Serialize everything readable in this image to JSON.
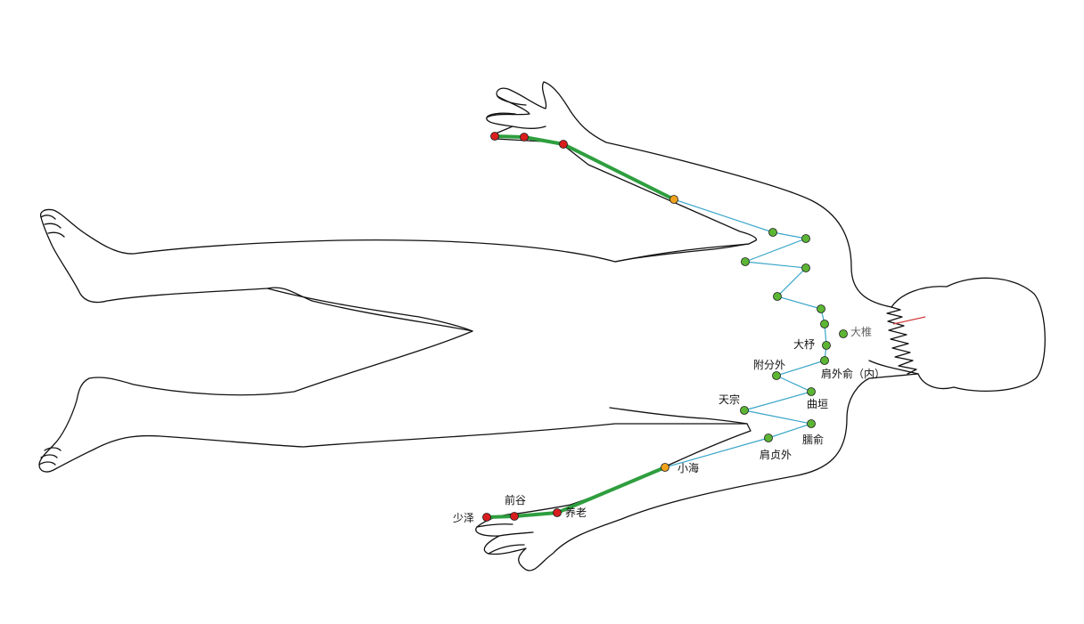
{
  "colors": {
    "background": "#ffffff",
    "outline": "#111111",
    "channel_surface": "#2e9e3e",
    "channel_internal": "#3aa6c8",
    "point_green": "#5cb634",
    "point_orange": "#f0a21c",
    "point_red": "#d81e1e",
    "label_dark": "#111111",
    "label_gray": "#666666",
    "marker_red": "#d33c3c"
  },
  "points": [
    {
      "id": "shaoze_r",
      "label": "少泽",
      "color": "red"
    },
    {
      "id": "qiangu_r",
      "label": "前谷",
      "color": "red"
    },
    {
      "id": "yanglao_r",
      "label": "养老",
      "color": "red"
    },
    {
      "id": "xiaohai_r",
      "label": "小海",
      "color": "orange"
    },
    {
      "id": "jianzhen_r",
      "label": "肩贞外",
      "color": "green"
    },
    {
      "id": "naoshu_r",
      "label": "臑俞",
      "color": "green"
    },
    {
      "id": "tianzong_r",
      "label": "天宗",
      "color": "green"
    },
    {
      "id": "quyuan_r",
      "label": "曲垣",
      "color": "green"
    },
    {
      "id": "fufen_r",
      "label": "附分外",
      "color": "green"
    },
    {
      "id": "jianwaishu_r",
      "label": "肩外俞（内）",
      "color": "green"
    },
    {
      "id": "dazhu",
      "label": "大杼",
      "color": "green"
    },
    {
      "id": "dazhui",
      "label": "大椎",
      "color": "green"
    },
    {
      "id": "p_l1",
      "label": "",
      "color": "green"
    },
    {
      "id": "p_l2",
      "label": "",
      "color": "green"
    },
    {
      "id": "p_l3",
      "label": "",
      "color": "green"
    },
    {
      "id": "p_l4",
      "label": "",
      "color": "green"
    },
    {
      "id": "p_l5",
      "label": "",
      "color": "green"
    },
    {
      "id": "p_l6",
      "label": "",
      "color": "green"
    },
    {
      "id": "p_l7",
      "label": "",
      "color": "green"
    },
    {
      "id": "p_l8",
      "label": "",
      "color": "orange"
    },
    {
      "id": "p_l9",
      "label": "",
      "color": "red"
    },
    {
      "id": "p_l10",
      "label": "",
      "color": "red"
    },
    {
      "id": "p_l11",
      "label": "",
      "color": "red"
    }
  ],
  "thick_paths": [
    [
      "shaoze_r",
      "qiangu_r",
      "yanglao_r",
      "xiaohai_r"
    ],
    [
      "p_l11",
      "p_l10",
      "p_l9",
      "p_l8"
    ]
  ],
  "thin_path": [
    "xiaohai_r",
    "jianzhen_r",
    "naoshu_r",
    "tianzong_r",
    "quyuan_r",
    "fufen_r",
    "jianwaishu_r",
    "dazhu",
    "p_l1",
    "p_l2",
    "p_l3",
    "p_l4",
    "p_l5",
    "p_l6",
    "p_l7",
    "p_l8"
  ]
}
